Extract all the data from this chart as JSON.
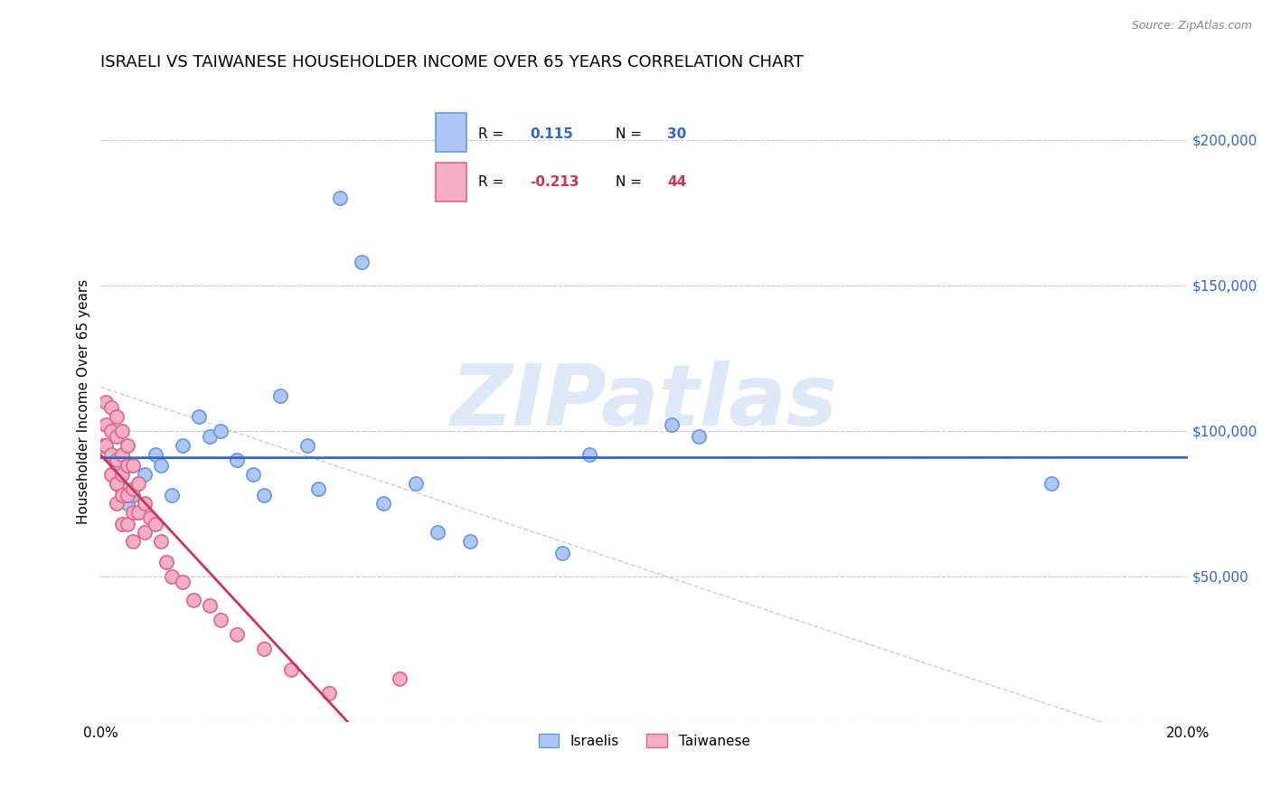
{
  "title": "ISRAELI VS TAIWANESE HOUSEHOLDER INCOME OVER 65 YEARS CORRELATION CHART",
  "source": "Source: ZipAtlas.com",
  "ylabel": "Householder Income Over 65 years",
  "xlim": [
    0.0,
    0.2
  ],
  "ylim": [
    0,
    220000
  ],
  "yticks": [
    0,
    50000,
    100000,
    150000,
    200000
  ],
  "ytick_labels": [
    "",
    "$50,000",
    "$100,000",
    "$150,000",
    "$200,000"
  ],
  "xticks": [
    0.0,
    0.02,
    0.04,
    0.06,
    0.08,
    0.1,
    0.12,
    0.14,
    0.16,
    0.18,
    0.2
  ],
  "background_color": "#ffffff",
  "grid_color": "#c8c8c8",
  "israeli_color": "#aec6f5",
  "taiwanese_color": "#f5aec6",
  "israeli_edge_color": "#6699dd",
  "taiwanese_edge_color": "#dd6688",
  "trend_israeli_color": "#3366cc",
  "trend_taiwanese_color": "#cc3355",
  "trend_dashed_color": "#cccccc",
  "R_israeli": 0.115,
  "N_israeli": 30,
  "R_taiwanese": -0.213,
  "N_taiwanese": 44,
  "israeli_x": [
    0.003,
    0.004,
    0.005,
    0.006,
    0.007,
    0.008,
    0.01,
    0.011,
    0.013,
    0.015,
    0.018,
    0.02,
    0.022,
    0.025,
    0.028,
    0.03,
    0.033,
    0.038,
    0.04,
    0.044,
    0.048,
    0.052,
    0.058,
    0.062,
    0.068,
    0.085,
    0.09,
    0.105,
    0.11,
    0.175
  ],
  "israeli_y": [
    82000,
    80000,
    75000,
    78000,
    72000,
    85000,
    92000,
    88000,
    78000,
    95000,
    105000,
    98000,
    100000,
    90000,
    85000,
    78000,
    112000,
    95000,
    80000,
    180000,
    158000,
    75000,
    82000,
    65000,
    62000,
    58000,
    92000,
    102000,
    98000,
    82000
  ],
  "taiwanese_x": [
    0.0005,
    0.001,
    0.001,
    0.001,
    0.002,
    0.002,
    0.002,
    0.002,
    0.003,
    0.003,
    0.003,
    0.003,
    0.003,
    0.004,
    0.004,
    0.004,
    0.004,
    0.004,
    0.005,
    0.005,
    0.005,
    0.005,
    0.006,
    0.006,
    0.006,
    0.006,
    0.007,
    0.007,
    0.008,
    0.008,
    0.009,
    0.01,
    0.011,
    0.012,
    0.013,
    0.015,
    0.017,
    0.02,
    0.022,
    0.025,
    0.03,
    0.035,
    0.042,
    0.055
  ],
  "taiwanese_y": [
    95000,
    110000,
    102000,
    95000,
    108000,
    100000,
    92000,
    85000,
    105000,
    98000,
    90000,
    82000,
    75000,
    100000,
    92000,
    85000,
    78000,
    68000,
    95000,
    88000,
    78000,
    68000,
    88000,
    80000,
    72000,
    62000,
    82000,
    72000,
    75000,
    65000,
    70000,
    68000,
    62000,
    55000,
    50000,
    48000,
    42000,
    40000,
    35000,
    30000,
    25000,
    18000,
    10000,
    15000
  ],
  "marker_size": 120,
  "watermark_text": "ZIPatlas",
  "watermark_color": "#dde8f8",
  "watermark_fontsize": 68,
  "title_fontsize": 13,
  "label_fontsize": 11,
  "tick_fontsize": 11,
  "axis_color": "#3366cc",
  "legend_fontsize": 11
}
